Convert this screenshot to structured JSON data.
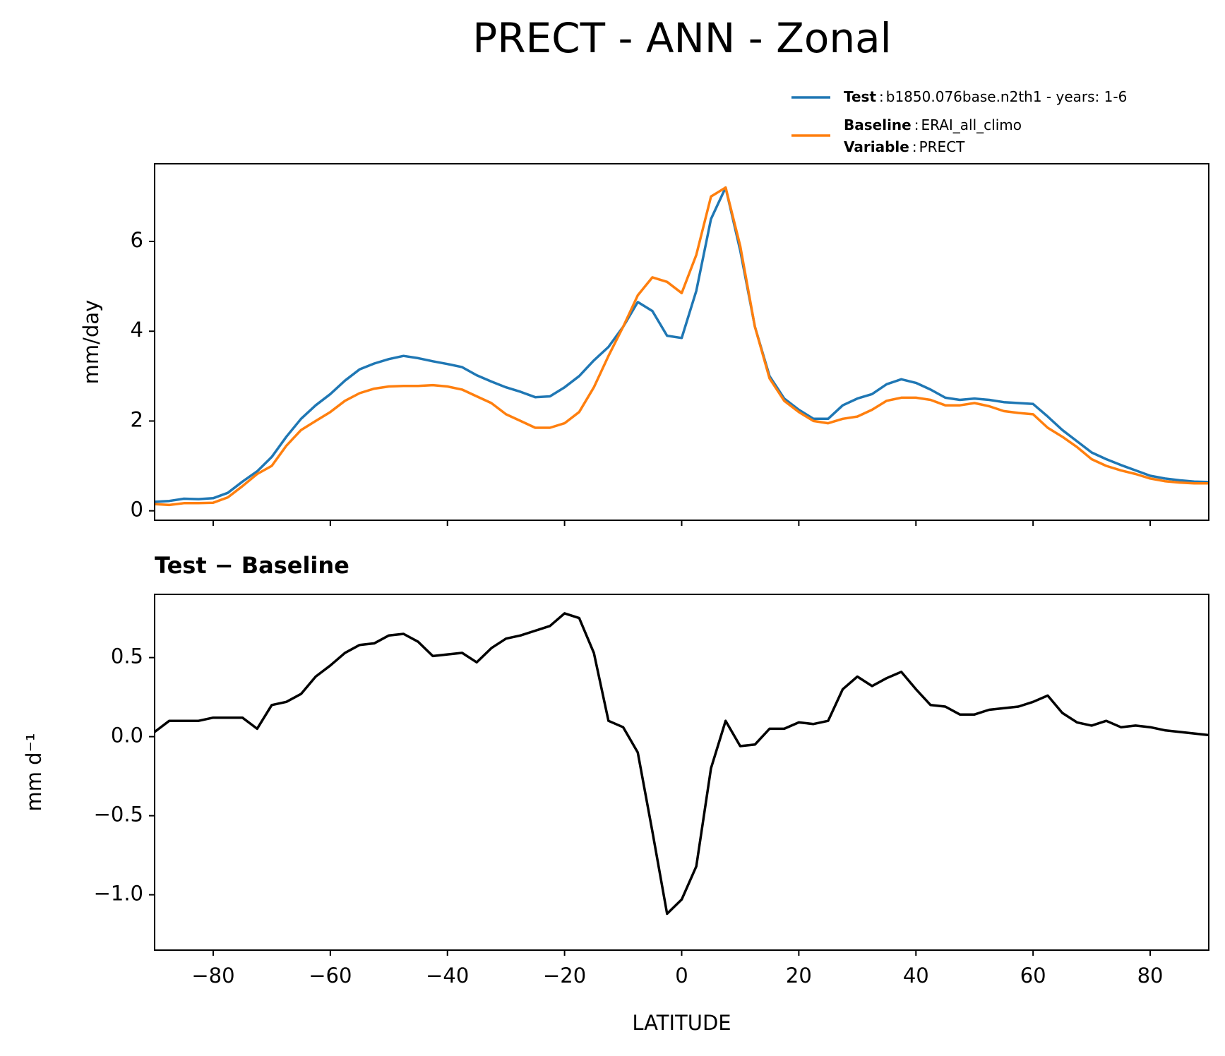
{
  "title": "PRECT - ANN - Zonal",
  "chart_data": [
    {
      "type": "line",
      "x": [
        -90,
        -87.5,
        -85,
        -82.5,
        -80,
        -77.5,
        -75,
        -72.5,
        -70,
        -67.5,
        -65,
        -62.5,
        -60,
        -57.5,
        -55,
        -52.5,
        -50,
        -47.5,
        -45,
        -42.5,
        -40,
        -37.5,
        -35,
        -32.5,
        -30,
        -27.5,
        -25,
        -22.5,
        -20,
        -17.5,
        -15,
        -12.5,
        -10,
        -7.5,
        -5,
        -2.5,
        0,
        2.5,
        5,
        7.5,
        10,
        12.5,
        15,
        17.5,
        20,
        22.5,
        25,
        27.5,
        30,
        32.5,
        35,
        37.5,
        40,
        42.5,
        45,
        47.5,
        50,
        52.5,
        55,
        57.5,
        60,
        62.5,
        65,
        67.5,
        70,
        72.5,
        75,
        77.5,
        80,
        82.5,
        85,
        87.5,
        90
      ],
      "series": [
        {
          "name": "Test",
          "description": "b1850.076base.n2th1 - years: 1-6",
          "color": "#1f77b4",
          "values": [
            0.2,
            0.22,
            0.27,
            0.26,
            0.28,
            0.4,
            0.65,
            0.88,
            1.2,
            1.65,
            2.05,
            2.35,
            2.6,
            2.9,
            3.15,
            3.28,
            3.38,
            3.45,
            3.4,
            3.33,
            3.27,
            3.2,
            3.02,
            2.88,
            2.75,
            2.65,
            2.53,
            2.55,
            2.75,
            3.0,
            3.35,
            3.65,
            4.1,
            4.65,
            4.45,
            3.9,
            3.85,
            4.9,
            6.5,
            7.2,
            5.8,
            4.1,
            3.0,
            2.5,
            2.25,
            2.05,
            2.05,
            2.35,
            2.5,
            2.6,
            2.82,
            2.93,
            2.85,
            2.7,
            2.52,
            2.47,
            2.5,
            2.47,
            2.42,
            2.4,
            2.38,
            2.1,
            1.8,
            1.55,
            1.3,
            1.15,
            1.02,
            0.9,
            0.78,
            0.72,
            0.68,
            0.65,
            0.64
          ]
        },
        {
          "name": "Baseline",
          "description": "ERAI_all_climo",
          "color": "#ff7f0e",
          "values": [
            0.15,
            0.13,
            0.17,
            0.17,
            0.18,
            0.3,
            0.55,
            0.82,
            1.0,
            1.45,
            1.8,
            2.0,
            2.2,
            2.45,
            2.62,
            2.72,
            2.77,
            2.78,
            2.78,
            2.8,
            2.77,
            2.7,
            2.55,
            2.4,
            2.15,
            2.0,
            1.85,
            1.85,
            1.95,
            2.2,
            2.75,
            3.45,
            4.1,
            4.8,
            5.2,
            5.1,
            4.85,
            5.7,
            7.0,
            7.2,
            5.9,
            4.1,
            2.95,
            2.45,
            2.2,
            2.0,
            1.95,
            2.05,
            2.1,
            2.25,
            2.45,
            2.52,
            2.52,
            2.47,
            2.35,
            2.35,
            2.4,
            2.33,
            2.22,
            2.18,
            2.15,
            1.85,
            1.65,
            1.42,
            1.15,
            1.0,
            0.9,
            0.82,
            0.72,
            0.66,
            0.63,
            0.61,
            0.61
          ]
        }
      ],
      "legend_extra": {
        "name": "Variable",
        "description": "PRECT"
      },
      "legend_separator": ":",
      "ylabel": "mm/day",
      "xlim": [
        -90,
        90
      ],
      "ylim": [
        -0.21,
        7.73
      ],
      "yticks": [
        0,
        2,
        4,
        6
      ]
    },
    {
      "type": "line",
      "title": "Test − Baseline",
      "x": [
        -90,
        -87.5,
        -85,
        -82.5,
        -80,
        -77.5,
        -75,
        -72.5,
        -70,
        -67.5,
        -65,
        -62.5,
        -60,
        -57.5,
        -55,
        -52.5,
        -50,
        -47.5,
        -45,
        -42.5,
        -40,
        -37.5,
        -35,
        -32.5,
        -30,
        -27.5,
        -25,
        -22.5,
        -20,
        -17.5,
        -15,
        -12.5,
        -10,
        -7.5,
        -5,
        -2.5,
        0,
        2.5,
        5,
        7.5,
        10,
        12.5,
        15,
        17.5,
        20,
        22.5,
        25,
        27.5,
        30,
        32.5,
        35,
        37.5,
        40,
        42.5,
        45,
        47.5,
        50,
        52.5,
        55,
        57.5,
        60,
        62.5,
        65,
        67.5,
        70,
        72.5,
        75,
        77.5,
        80,
        82.5,
        85,
        87.5,
        90
      ],
      "color": "#000000",
      "values": [
        0.03,
        0.1,
        0.1,
        0.1,
        0.12,
        0.12,
        0.12,
        0.05,
        0.2,
        0.22,
        0.27,
        0.38,
        0.45,
        0.53,
        0.58,
        0.59,
        0.64,
        0.65,
        0.6,
        0.51,
        0.52,
        0.53,
        0.47,
        0.56,
        0.62,
        0.64,
        0.67,
        0.7,
        0.78,
        0.75,
        0.53,
        0.1,
        0.06,
        -0.1,
        -0.6,
        -1.12,
        -1.03,
        -0.82,
        -0.2,
        0.1,
        -0.06,
        -0.05,
        0.05,
        0.05,
        0.09,
        0.08,
        0.1,
        0.3,
        0.38,
        0.32,
        0.37,
        0.41,
        0.3,
        0.2,
        0.19,
        0.14,
        0.14,
        0.17,
        0.18,
        0.19,
        0.22,
        0.26,
        0.15,
        0.09,
        0.07,
        0.1,
        0.06,
        0.07,
        0.06,
        0.04,
        0.03,
        0.02,
        0.01
      ],
      "ylabel": "mm d⁻¹",
      "xlabel": "LATITUDE",
      "xlim": [
        -90,
        90
      ],
      "ylim": [
        -1.35,
        0.9
      ],
      "yticks": [
        {
          "value": -1.0,
          "label": "−1.0"
        },
        {
          "value": -0.5,
          "label": "−0.5"
        },
        {
          "value": 0.0,
          "label": "0.0"
        },
        0.5
      ],
      "xticks": [
        {
          "value": -80,
          "label": "−80"
        },
        {
          "value": -60,
          "label": "−60"
        },
        {
          "value": -40,
          "label": "−40"
        },
        {
          "value": -20,
          "label": "−20"
        },
        0,
        20,
        40,
        60,
        80
      ]
    }
  ]
}
